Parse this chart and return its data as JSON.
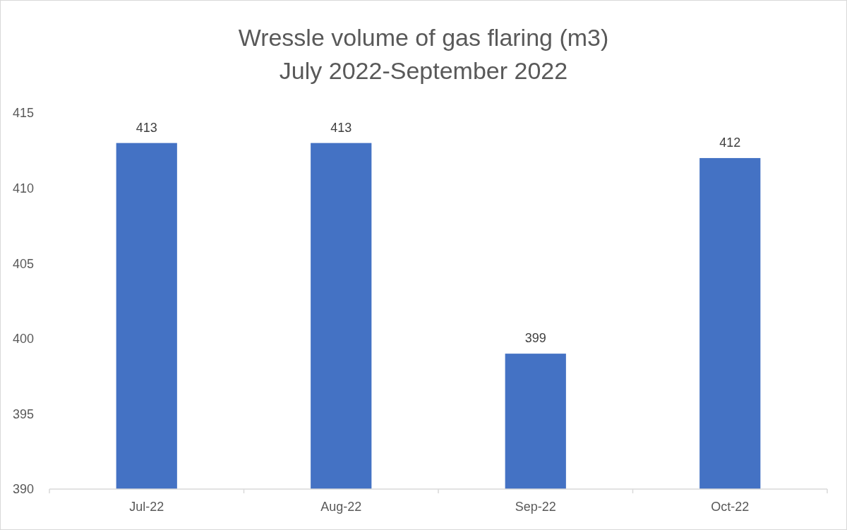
{
  "chart_data": {
    "type": "bar",
    "title": "Wressle volume of gas flaring (m3)\nJuly 2022-September 2022",
    "categories": [
      "Jul-22",
      "Aug-22",
      "Sep-22",
      "Oct-22"
    ],
    "values": [
      413,
      413,
      399,
      412
    ],
    "color": "#4472c4",
    "ylim": [
      390,
      415
    ],
    "yticks": [
      390,
      395,
      400,
      405,
      410,
      415
    ],
    "grid": false,
    "data_labels": true
  }
}
